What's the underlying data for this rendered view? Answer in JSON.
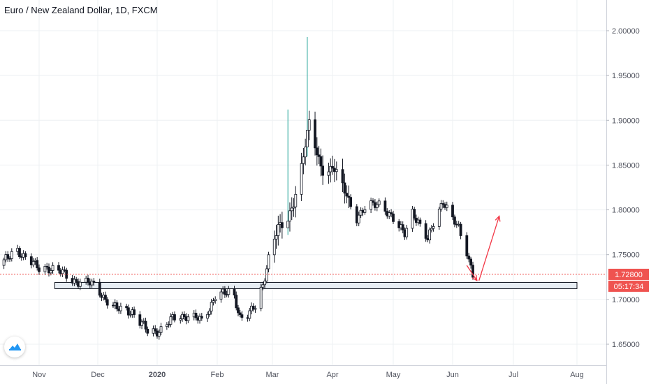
{
  "header": {
    "title": "Euro / New Zealand Dollar, 1D, FXCM"
  },
  "colors": {
    "up": "#26a69a",
    "down": "#ef5350",
    "candle_body": "#131722",
    "grid": "#eef0f3",
    "axis_text": "#50535e",
    "price_label_bg": "#ef5350",
    "annotation": "#f23645",
    "zone_fill": "#e8eef4",
    "zone_border": "#131722"
  },
  "chart_data": {
    "type": "candlestick",
    "x_ticks": [
      "Nov",
      "Dec",
      "2020",
      "Feb",
      "Mar",
      "Apr",
      "May",
      "Jun",
      "Jul",
      "Aug"
    ],
    "y_ticks": [
      "2.00000",
      "1.95000",
      "1.90000",
      "1.85000",
      "1.80000",
      "1.75000",
      "1.70000",
      "1.65000"
    ],
    "ylim": [
      1.63,
      2.04
    ],
    "grid": true,
    "last_price_label": "1.72800",
    "last_price": 1.728,
    "countdown_label": "05:17:34",
    "support_zone": {
      "from_date": "2019-11-09",
      "to_date": "2020-08-01",
      "low": 1.712,
      "high": 1.719
    },
    "arrows": [
      {
        "from": [
          "2020-06-08",
          1.738
        ],
        "to": [
          "2020-06-13",
          1.721
        ]
      },
      {
        "from": [
          "2020-06-14",
          1.721
        ],
        "to": [
          "2020-06-24",
          1.793
        ]
      }
    ],
    "closes": [
      [
        "2019-10-12",
        1.738
      ],
      [
        "2019-10-16",
        1.745
      ],
      [
        "2019-10-20",
        1.76
      ],
      [
        "2019-10-24",
        1.748
      ],
      [
        "2019-10-28",
        1.74
      ],
      [
        "2019-11-01",
        1.735
      ],
      [
        "2019-11-05",
        1.737
      ],
      [
        "2019-11-09",
        1.732
      ],
      [
        "2019-11-13",
        1.729
      ],
      [
        "2019-11-17",
        1.724
      ],
      [
        "2019-11-21",
        1.72
      ],
      [
        "2019-11-25",
        1.718
      ],
      [
        "2019-11-29",
        1.716
      ],
      [
        "2019-12-03",
        1.707
      ],
      [
        "2019-12-07",
        1.695
      ],
      [
        "2019-12-11",
        1.688
      ],
      [
        "2019-12-15",
        1.69
      ],
      [
        "2019-12-19",
        1.687
      ],
      [
        "2019-12-23",
        1.674
      ],
      [
        "2019-12-27",
        1.664
      ],
      [
        "2019-12-31",
        1.665
      ],
      [
        "2020-01-04",
        1.668
      ],
      [
        "2020-01-08",
        1.676
      ],
      [
        "2020-01-12",
        1.68
      ],
      [
        "2020-01-16",
        1.683
      ],
      [
        "2020-01-20",
        1.681
      ],
      [
        "2020-01-24",
        1.674
      ],
      [
        "2020-01-28",
        1.69
      ],
      [
        "2020-02-01",
        1.712
      ],
      [
        "2020-02-05",
        1.705
      ],
      [
        "2020-02-09",
        1.708
      ],
      [
        "2020-02-13",
        1.682
      ],
      [
        "2020-02-17",
        1.684
      ],
      [
        "2020-02-21",
        1.69
      ],
      [
        "2020-02-25",
        1.715
      ],
      [
        "2020-02-29",
        1.76
      ],
      [
        "2020-03-04",
        1.78
      ],
      [
        "2020-03-08",
        1.78
      ],
      [
        "2020-03-12",
        1.81
      ],
      [
        "2020-03-16",
        1.85
      ],
      [
        "2020-03-20",
        1.895
      ],
      [
        "2020-03-24",
        1.862
      ],
      [
        "2020-03-28",
        1.84
      ],
      [
        "2020-04-01",
        1.848
      ],
      [
        "2020-04-05",
        1.83
      ],
      [
        "2020-04-09",
        1.812
      ],
      [
        "2020-04-13",
        1.792
      ],
      [
        "2020-04-17",
        1.8
      ],
      [
        "2020-04-21",
        1.805
      ],
      [
        "2020-04-25",
        1.81
      ],
      [
        "2020-04-29",
        1.795
      ],
      [
        "2020-05-03",
        1.78
      ],
      [
        "2020-05-07",
        1.775
      ],
      [
        "2020-05-11",
        1.8
      ],
      [
        "2020-05-15",
        1.78
      ],
      [
        "2020-05-19",
        1.765
      ],
      [
        "2020-05-23",
        1.795
      ],
      [
        "2020-05-27",
        1.81
      ],
      [
        "2020-05-31",
        1.79
      ],
      [
        "2020-06-04",
        1.78
      ],
      [
        "2020-06-08",
        1.755
      ],
      [
        "2020-06-11",
        1.728
      ]
    ]
  }
}
